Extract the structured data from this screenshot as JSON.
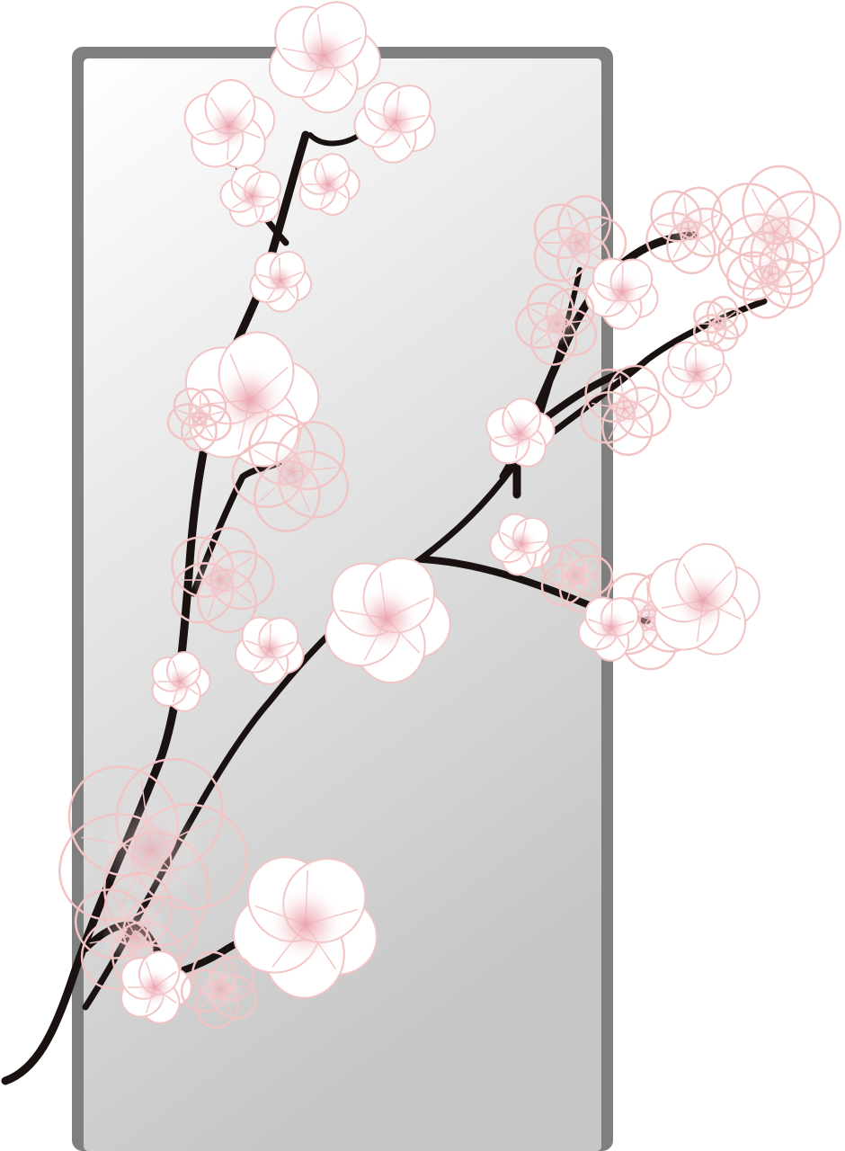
{
  "artwork": {
    "subject": "cherry-blossom-branch",
    "icon": "cherry-blossom-icon"
  },
  "colors": {
    "background": "#ffffff",
    "panel_frame": "#7f7f7f",
    "panel_gradient_top": "#ffffff",
    "panel_gradient_bottom": "#c8c8c8",
    "branch": "#1a1111",
    "petal_fill": "#ffffff",
    "petal_outline": "#f2c4c4",
    "blossom_center": "#e8a8b0"
  }
}
